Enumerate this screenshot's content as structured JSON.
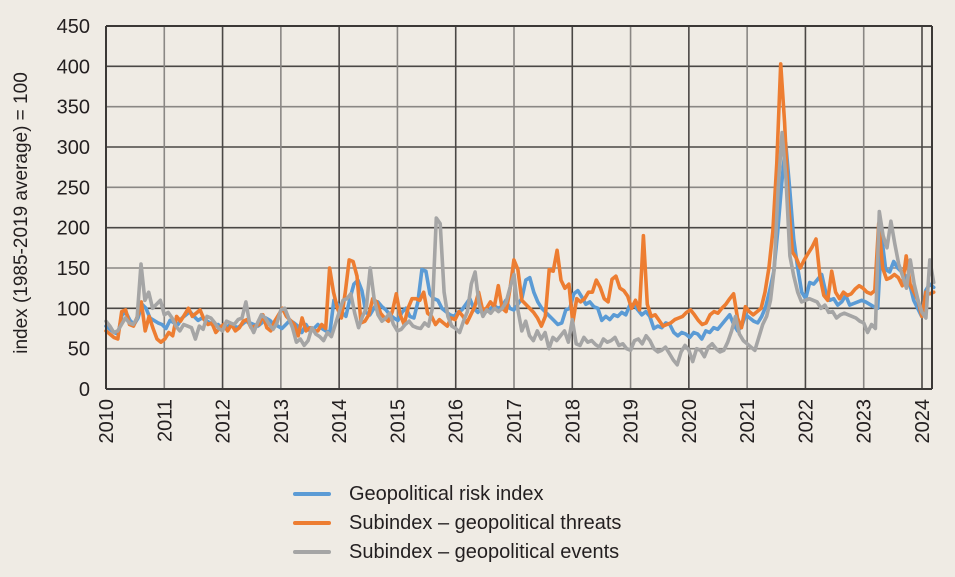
{
  "chart_data": {
    "type": "line",
    "title": "",
    "xlabel": "",
    "ylabel": "index (1985-2019 average) = 100",
    "ylim": [
      0,
      450
    ],
    "xlim": [
      2010,
      2024.2
    ],
    "yticks": [
      0,
      50,
      100,
      150,
      200,
      250,
      300,
      350,
      400,
      450
    ],
    "xticks": [
      "2010",
      "2011",
      "2012",
      "2013",
      "2014",
      "2015",
      "2016",
      "2017",
      "2018",
      "2019",
      "2020",
      "2021",
      "2022",
      "2023",
      "2024"
    ],
    "grid": true,
    "legend_position": "bottom",
    "x_start": 2010,
    "x_step": 0.08333,
    "series": [
      {
        "name": "Geopolitical risk index",
        "color": "#5b9bd5",
        "values": [
          78,
          74,
          70,
          68,
          92,
          95,
          85,
          80,
          88,
          105,
          100,
          88,
          85,
          82,
          80,
          75,
          85,
          82,
          80,
          88,
          92,
          96,
          90,
          85,
          88,
          85,
          82,
          78,
          80,
          76,
          75,
          80,
          78,
          76,
          80,
          84,
          82,
          80,
          78,
          82,
          88,
          85,
          80,
          78,
          75,
          80,
          85,
          82,
          78,
          70,
          80,
          72,
          75,
          80,
          75,
          72,
          70,
          110,
          105,
          95,
          90,
          112,
          130,
          135,
          122,
          95,
          92,
          100,
          108,
          102,
          98,
          92,
          88,
          85,
          95,
          100,
          90,
          88,
          108,
          148,
          146,
          118,
          112,
          110,
          100,
          96,
          92,
          90,
          95,
          98,
          105,
          112,
          100,
          95,
          100,
          96,
          98,
          104,
          100,
          102,
          110,
          100,
          98,
          105,
          112,
          135,
          138,
          120,
          108,
          100,
          95,
          90,
          85,
          80,
          82,
          98,
          100,
          118,
          122,
          114,
          105,
          108,
          102,
          100,
          85,
          90,
          86,
          92,
          90,
          95,
          92,
          104,
          105,
          98,
          92,
          96,
          90,
          75,
          78,
          76,
          82,
          80,
          70,
          66,
          70,
          68,
          64,
          70,
          68,
          62,
          72,
          70,
          76,
          74,
          80,
          86,
          92,
          80,
          72,
          78,
          92,
          88,
          84,
          82,
          90,
          102,
          122,
          145,
          195,
          255,
          305,
          248,
          186,
          150,
          120,
          112,
          132,
          130,
          136,
          142,
          120,
          110,
          112,
          104,
          108,
          116,
          104,
          106,
          108,
          110,
          108,
          105,
          102,
          100,
          188,
          148,
          145,
          158,
          150,
          145,
          140,
          130,
          110,
          100,
          90,
          122,
          130,
          126
        ],
        "values_note": "monthly values from Jan 2010 to early 2024 (approximate, read from plot)"
      },
      {
        "name": "Subindex – geopolitical threats",
        "color": "#ed7d31",
        "values": [
          72,
          68,
          64,
          62,
          96,
          98,
          80,
          78,
          90,
          108,
          72,
          90,
          75,
          62,
          58,
          62,
          70,
          66,
          90,
          84,
          92,
          100,
          90,
          94,
          98,
          86,
          80,
          82,
          70,
          76,
          80,
          72,
          80,
          72,
          76,
          84,
          86,
          76,
          78,
          80,
          92,
          76,
          72,
          84,
          92,
          100,
          90,
          85,
          80,
          66,
          88,
          72,
          76,
          72,
          72,
          80,
          75,
          150,
          120,
          100,
          88,
          120,
          160,
          158,
          140,
          82,
          84,
          92,
          112,
          108,
          94,
          88,
          84,
          96,
          118,
          92,
          80,
          100,
          112,
          112,
          110,
          120,
          94,
          90,
          80,
          86,
          82,
          78,
          88,
          86,
          96,
          90,
          82,
          92,
          102,
          120,
          98,
          100,
          108,
          102,
          128,
          100,
          96,
          124,
          160,
          148,
          110,
          105,
          100,
          95,
          88,
          78,
          90,
          148,
          146,
          172,
          135,
          125,
          130,
          82,
          112,
          108,
          112,
          120,
          120,
          135,
          126,
          112,
          108,
          136,
          140,
          125,
          122,
          115,
          100,
          110,
          98,
          190,
          105,
          90,
          92,
          85,
          78,
          80,
          82,
          86,
          88,
          90,
          95,
          98,
          92,
          85,
          80,
          82,
          92,
          96,
          94,
          100,
          105,
          112,
          118,
          88,
          76,
          102,
          96,
          92,
          96,
          100,
          120,
          150,
          195,
          280,
          403,
          330,
          230,
          170,
          162,
          150,
          160,
          168,
          176,
          186,
          140,
          116,
          110,
          146,
          120,
          112,
          120,
          116,
          118,
          124,
          128,
          125,
          120,
          118,
          122,
          205,
          150,
          136,
          138,
          142,
          138,
          128,
          165,
          130,
          120,
          110,
          90,
          120,
          118,
          120
        ],
        "values_note": "monthly values from Jan 2010 to early 2024 (approximate, read from plot)"
      },
      {
        "name": "Subindex – geopolitical events",
        "color": "#a5a5a5",
        "values": [
          84,
          78,
          70,
          72,
          80,
          88,
          82,
          80,
          88,
          155,
          110,
          120,
          100,
          105,
          110,
          92,
          95,
          88,
          78,
          72,
          80,
          78,
          76,
          62,
          78,
          74,
          90,
          88,
          82,
          75,
          72,
          84,
          82,
          80,
          86,
          88,
          108,
          80,
          70,
          82,
          92,
          88,
          80,
          74,
          82,
          98,
          100,
          88,
          76,
          58,
          62,
          54,
          60,
          76,
          68,
          65,
          60,
          70,
          65,
          80,
          95,
          110,
          112,
          118,
          94,
          76,
          90,
          100,
          150,
          112,
          92,
          84,
          88,
          94,
          80,
          72,
          74,
          80,
          84,
          78,
          76,
          75,
          82,
          78,
          100,
          212,
          205,
          120,
          90,
          78,
          75,
          70,
          84,
          96,
          130,
          145,
          106,
          90,
          98,
          94,
          100,
          96,
          100,
          108,
          126,
          142,
          98,
          72,
          84,
          66,
          60,
          72,
          62,
          70,
          50,
          64,
          60,
          66,
          72,
          58,
          86,
          56,
          54,
          64,
          58,
          60,
          55,
          52,
          62,
          58,
          60,
          64,
          54,
          56,
          50,
          48,
          60,
          62,
          56,
          66,
          60,
          50,
          46,
          48,
          52,
          44,
          36,
          30,
          46,
          54,
          48,
          34,
          50,
          48,
          40,
          52,
          56,
          50,
          46,
          48,
          58,
          72,
          90,
          68,
          60,
          56,
          52,
          48,
          64,
          80,
          90,
          110,
          150,
          250,
          318,
          260,
          165,
          140,
          120,
          108,
          110,
          112,
          110,
          108,
          100,
          104,
          95,
          96,
          88,
          92,
          94,
          92,
          90,
          88,
          84,
          82,
          70,
          80,
          75,
          220,
          190,
          175,
          208,
          180,
          155,
          140,
          125,
          160,
          130,
          110,
          95,
          88,
          160,
          132
        ],
        "values_note": "monthly values from Jan 2010 to early 2024 (approximate, read from plot)"
      }
    ]
  },
  "legend": {
    "items": [
      {
        "label": "Geopolitical risk index",
        "color": "#5b9bd5"
      },
      {
        "label": "Subindex – geopolitical threats",
        "color": "#ed7d31"
      },
      {
        "label": "Subindex – geopolitical events",
        "color": "#a5a5a5"
      }
    ]
  },
  "colors": {
    "background": "#efebe4",
    "grid": "#4a4745",
    "text": "#231f20"
  }
}
